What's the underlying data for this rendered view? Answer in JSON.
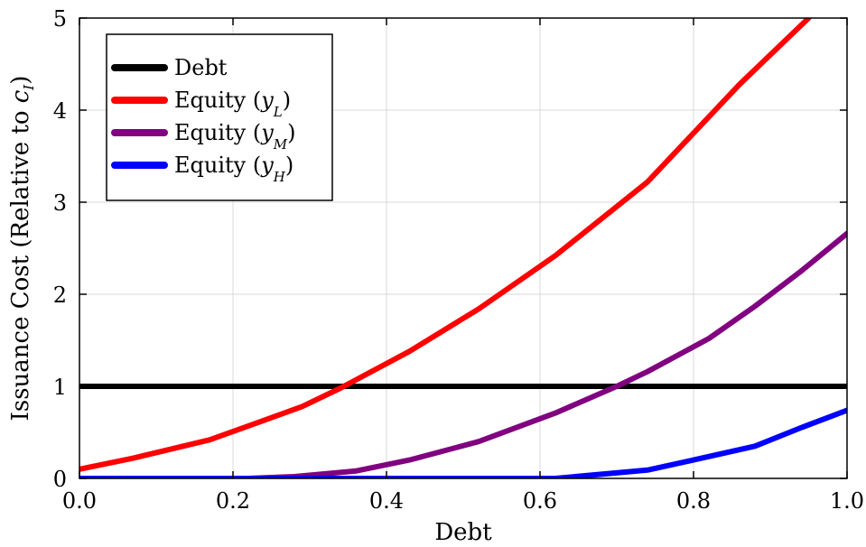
{
  "chart_data": {
    "type": "line",
    "title": "",
    "xlabel": "Debt",
    "ylabel": {
      "text": "Issuance Cost (Relative to ",
      "math": "c",
      "sub": "I",
      "close": ")"
    },
    "xlim": [
      0,
      1
    ],
    "ylim": [
      0,
      5
    ],
    "grid": true,
    "legend_position": "top-left",
    "x_ticks": [
      "0.0",
      "0.2",
      "0.4",
      "0.6",
      "0.8",
      "1.0"
    ],
    "y_ticks": [
      "0",
      "1",
      "2",
      "3",
      "4",
      "5"
    ],
    "series": [
      {
        "name": "Debt",
        "legend": {
          "text": "Debt"
        },
        "color": "#000000",
        "x": [
          0,
          1
        ],
        "y": [
          1,
          1
        ]
      },
      {
        "name": "Equity (y_L)",
        "legend": {
          "text": "Equity (",
          "math": "y",
          "sub": "L",
          "close": ")"
        },
        "color": "#ff0000",
        "x": [
          0,
          0.07,
          0.17,
          0.22,
          0.29,
          0.34,
          0.43,
          0.52,
          0.62,
          0.74,
          0.86,
          0.95
        ],
        "y": [
          0.1,
          0.22,
          0.42,
          0.57,
          0.78,
          0.98,
          1.38,
          1.84,
          2.42,
          3.22,
          4.28,
          5.0
        ]
      },
      {
        "name": "Equity (y_M)",
        "legend": {
          "text": "Equity (",
          "math": "y",
          "sub": "M",
          "close": ")"
        },
        "color": "#800080",
        "x": [
          0,
          0.22,
          0.28,
          0.36,
          0.43,
          0.52,
          0.62,
          0.7,
          0.74,
          0.82,
          0.88,
          0.94,
          1.0
        ],
        "y": [
          0,
          0,
          0.02,
          0.08,
          0.2,
          0.4,
          0.71,
          1.0,
          1.16,
          1.52,
          1.87,
          2.25,
          2.66
        ]
      },
      {
        "name": "Equity (y_H)",
        "legend": {
          "text": "Equity (",
          "math": "y",
          "sub": "H",
          "close": ")"
        },
        "color": "#0000ff",
        "x": [
          0,
          0.62,
          0.74,
          0.8,
          0.88,
          0.94,
          1.0
        ],
        "y": [
          0,
          0,
          0.09,
          0.2,
          0.35,
          0.55,
          0.74
        ]
      }
    ]
  }
}
